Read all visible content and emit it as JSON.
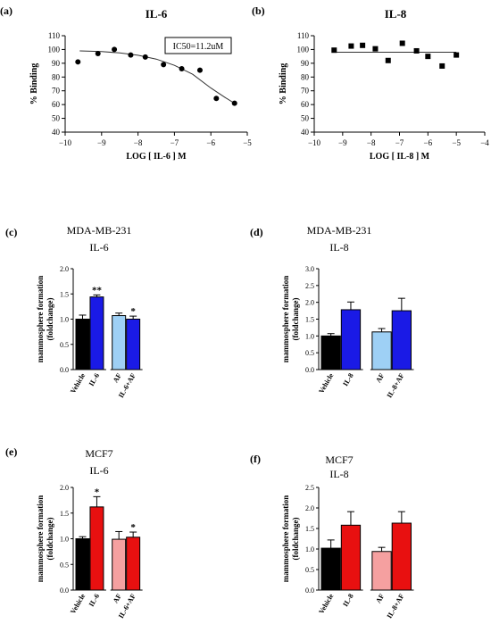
{
  "chart_data": [
    {
      "panel": "(a)",
      "type": "scatter",
      "title": "IL-6",
      "xlabel": "LOG [ IL-6 ] M",
      "ylabel": "% Binding",
      "xlim": [
        -10,
        -5
      ],
      "ylim": [
        40,
        110
      ],
      "xticks": [
        "−10",
        "−9",
        "−8",
        "−7",
        "−6",
        "−5"
      ],
      "yticks": [
        "40",
        "50",
        "60",
        "70",
        "80",
        "90",
        "100",
        "110"
      ],
      "marker": "circle",
      "points": [
        [
          -9.65,
          91
        ],
        [
          -9.1,
          97
        ],
        [
          -8.65,
          100
        ],
        [
          -8.2,
          96
        ],
        [
          -7.8,
          94.5
        ],
        [
          -7.3,
          89
        ],
        [
          -6.8,
          86
        ],
        [
          -6.3,
          85
        ],
        [
          -5.85,
          64.5
        ],
        [
          -5.35,
          61
        ]
      ],
      "fit": [
        [
          -9.6,
          99
        ],
        [
          -9,
          98.5
        ],
        [
          -8.5,
          97.5
        ],
        [
          -8,
          95.8
        ],
        [
          -7.5,
          93
        ],
        [
          -7,
          88.5
        ],
        [
          -6.5,
          82
        ],
        [
          -6,
          72
        ],
        [
          -5.6,
          65
        ],
        [
          -5.3,
          60
        ]
      ],
      "annotation": "IC50=11.2uM"
    },
    {
      "panel": "(b)",
      "type": "scatter",
      "title": "IL-8",
      "xlabel": "LOG [ IL-8 ] M",
      "ylabel": "% Binding",
      "xlim": [
        -10,
        -4
      ],
      "ylim": [
        40,
        110
      ],
      "xticks": [
        "−10",
        "−9",
        "−8",
        "−7",
        "−6",
        "−5",
        "−4"
      ],
      "yticks": [
        "40",
        "50",
        "60",
        "70",
        "80",
        "90",
        "100",
        "110"
      ],
      "marker": "square",
      "points": [
        [
          -9.3,
          99.5
        ],
        [
          -8.7,
          102.5
        ],
        [
          -8.3,
          103
        ],
        [
          -7.85,
          100.5
        ],
        [
          -7.4,
          92
        ],
        [
          -6.9,
          104.5
        ],
        [
          -6.4,
          99
        ],
        [
          -6.0,
          95
        ],
        [
          -5.5,
          88
        ],
        [
          -5.0,
          96
        ]
      ],
      "fit": [
        [
          -9.3,
          98
        ],
        [
          -5,
          98
        ]
      ]
    },
    {
      "panel": "(c)",
      "type": "bar",
      "title": "MDA-MB-231",
      "subtitle": "IL-6",
      "ylabel": "mammosphere formation",
      "ylabel2": "(foldchange)",
      "ylim": [
        0,
        2.0
      ],
      "yticks": [
        "0.0",
        "0.5",
        "1.0",
        "1.5",
        "2.0"
      ],
      "categories": [
        "Vehicle",
        "IL-6",
        "AF",
        "IL-6+AF"
      ],
      "values": [
        1.0,
        1.44,
        1.07,
        1.0
      ],
      "errors": [
        0.08,
        0.04,
        0.05,
        0.06
      ],
      "colors": [
        "#000000",
        "#1a1ae6",
        "#9ed0f5",
        "#1a1ae6"
      ],
      "signif": [
        "",
        "**",
        "",
        "*"
      ]
    },
    {
      "panel": "(d)",
      "type": "bar",
      "title": "MDA-MB-231",
      "subtitle": "IL-8",
      "ylabel": "mammosphere formation",
      "ylabel2": "(foldchange)",
      "ylim": [
        0,
        3.0
      ],
      "yticks": [
        "0.0",
        "0.5",
        "1.0",
        "1.5",
        "2.0",
        "2.5",
        "3.0"
      ],
      "categories": [
        "Vehicle",
        "IL-8",
        "AF",
        "IL-8+AF"
      ],
      "values": [
        1.0,
        1.78,
        1.12,
        1.75
      ],
      "errors": [
        0.07,
        0.23,
        0.1,
        0.37
      ],
      "colors": [
        "#000000",
        "#1a1ae6",
        "#9ed0f5",
        "#1a1ae6"
      ],
      "signif": [
        "",
        "",
        "",
        ""
      ]
    },
    {
      "panel": "(e)",
      "type": "bar",
      "title": "MCF7",
      "subtitle": "IL-6",
      "ylabel": "mammosphere formation",
      "ylabel2": "(foldchange)",
      "ylim": [
        0,
        2.0
      ],
      "yticks": [
        "0.0",
        "0.5",
        "1.0",
        "1.5",
        "2.0"
      ],
      "categories": [
        "Vehicle",
        "IL-6",
        "AF",
        "IL-6+AF"
      ],
      "values": [
        1.0,
        1.62,
        0.99,
        1.03
      ],
      "errors": [
        0.04,
        0.2,
        0.15,
        0.1
      ],
      "colors": [
        "#000000",
        "#e81010",
        "#f5a0a0",
        "#e81010"
      ],
      "signif": [
        "",
        "*",
        "",
        "*"
      ]
    },
    {
      "panel": "(f)",
      "type": "bar",
      "title": "MCF7",
      "subtitle": "IL-8",
      "ylabel": "mammosphere formation",
      "ylabel2": "(foldchange)",
      "ylim": [
        0,
        2.5
      ],
      "yticks": [
        "0.0",
        "0.5",
        "1.0",
        "1.5",
        "2.0",
        "2.5"
      ],
      "categories": [
        "Vehicle",
        "IL-8",
        "AF",
        "IL-8+AF"
      ],
      "values": [
        1.02,
        1.58,
        0.94,
        1.63
      ],
      "errors": [
        0.2,
        0.33,
        0.1,
        0.28
      ],
      "colors": [
        "#000000",
        "#e81010",
        "#f5a0a0",
        "#e81010"
      ],
      "signif": [
        "",
        "",
        "",
        ""
      ]
    }
  ]
}
